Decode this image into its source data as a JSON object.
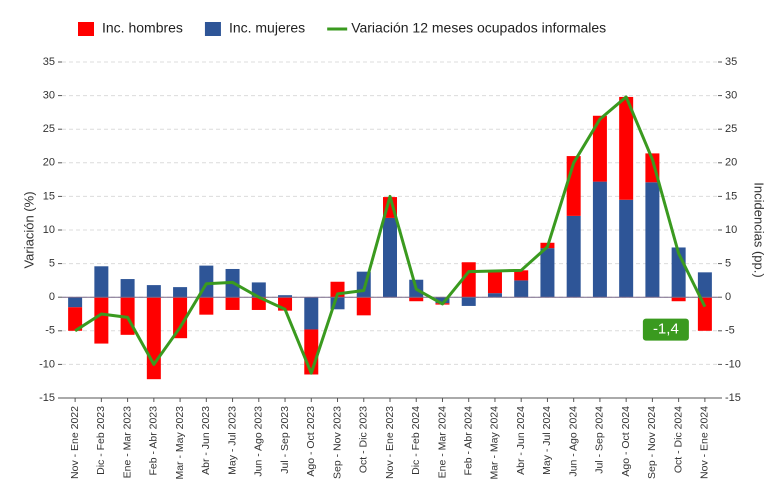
{
  "chart_data": {
    "type": "bar_line",
    "y_label": "Variación (%)",
    "y2_label": "Incidencias (pp.)",
    "categories": [
      "Nov - Ene 2022",
      "Dic - Feb 2023",
      "Ene - Mar 2023",
      "Feb - Abr 2023",
      "Mar - May 2023",
      "Abr - Jun 2023",
      "May - Jul 2023",
      "Jun - Ago 2023",
      "Jul - Sep 2023",
      "Ago - Oct 2023",
      "Sep - Nov 2023",
      "Oct - Dic 2023",
      "Nov - Ene 2023",
      "Dic - Feb 2024",
      "Ene - Mar 2024",
      "Feb - Abr 2024",
      "Mar - May 2024",
      "Abr - Jun 2024",
      "May - Jul 2024",
      "Jun - Ago 2024",
      "Jul - Sep 2024",
      "Ago - Oct 2024",
      "Sep - Nov 2024",
      "Oct - Dic 2024",
      "Nov - Ene 2024"
    ],
    "series": [
      {
        "name": "Inc. hombres",
        "type": "bar",
        "axis": "y2",
        "color": "#ff0000",
        "values": [
          -3.5,
          -6.9,
          -5.6,
          -12.2,
          -6.1,
          -2.6,
          -1.9,
          -1.9,
          -2.0,
          -6.7,
          2.3,
          -2.7,
          3.1,
          -0.6,
          -0.2,
          5.2,
          3.2,
          1.5,
          0.8,
          8.9,
          9.8,
          15.3,
          4.3,
          -0.6,
          -5.0
        ]
      },
      {
        "name": "Inc. mujeres",
        "type": "bar",
        "axis": "y2",
        "color": "#2e5597",
        "values": [
          -1.5,
          4.6,
          2.7,
          1.8,
          1.5,
          4.7,
          4.2,
          2.2,
          0.3,
          -4.8,
          -1.8,
          3.8,
          11.8,
          2.6,
          -0.9,
          -1.3,
          0.6,
          2.5,
          7.3,
          12.1,
          17.2,
          14.5,
          17.1,
          7.4,
          3.7
        ]
      },
      {
        "name": "Variación 12 meses ocupados informales",
        "type": "line",
        "color": "#3a9a1f",
        "values": [
          -5.0,
          -2.5,
          -3.0,
          -10.0,
          -4.5,
          2.0,
          2.2,
          0.0,
          -1.8,
          -11.3,
          0.5,
          1.0,
          15.0,
          1.2,
          -1.0,
          3.8,
          3.9,
          4.0,
          7.5,
          20.0,
          26.5,
          29.8,
          20.5,
          6.5,
          -1.4
        ],
        "value_labels": [
          null,
          null,
          null,
          null,
          null,
          null,
          null,
          null,
          null,
          null,
          null,
          null,
          null,
          null,
          null,
          null,
          null,
          null,
          null,
          null,
          null,
          null,
          null,
          null,
          "-1,4"
        ]
      }
    ],
    "ylim": [
      -15,
      35
    ],
    "yticks": [
      -15,
      -10,
      -5,
      0,
      5,
      10,
      15,
      20,
      25,
      30,
      35
    ],
    "y2lim": [
      -15,
      35
    ],
    "y2ticks": [
      -15,
      -10,
      -5,
      0,
      5,
      10,
      15,
      20,
      25,
      30,
      35
    ],
    "grid": true,
    "legend": "top"
  }
}
